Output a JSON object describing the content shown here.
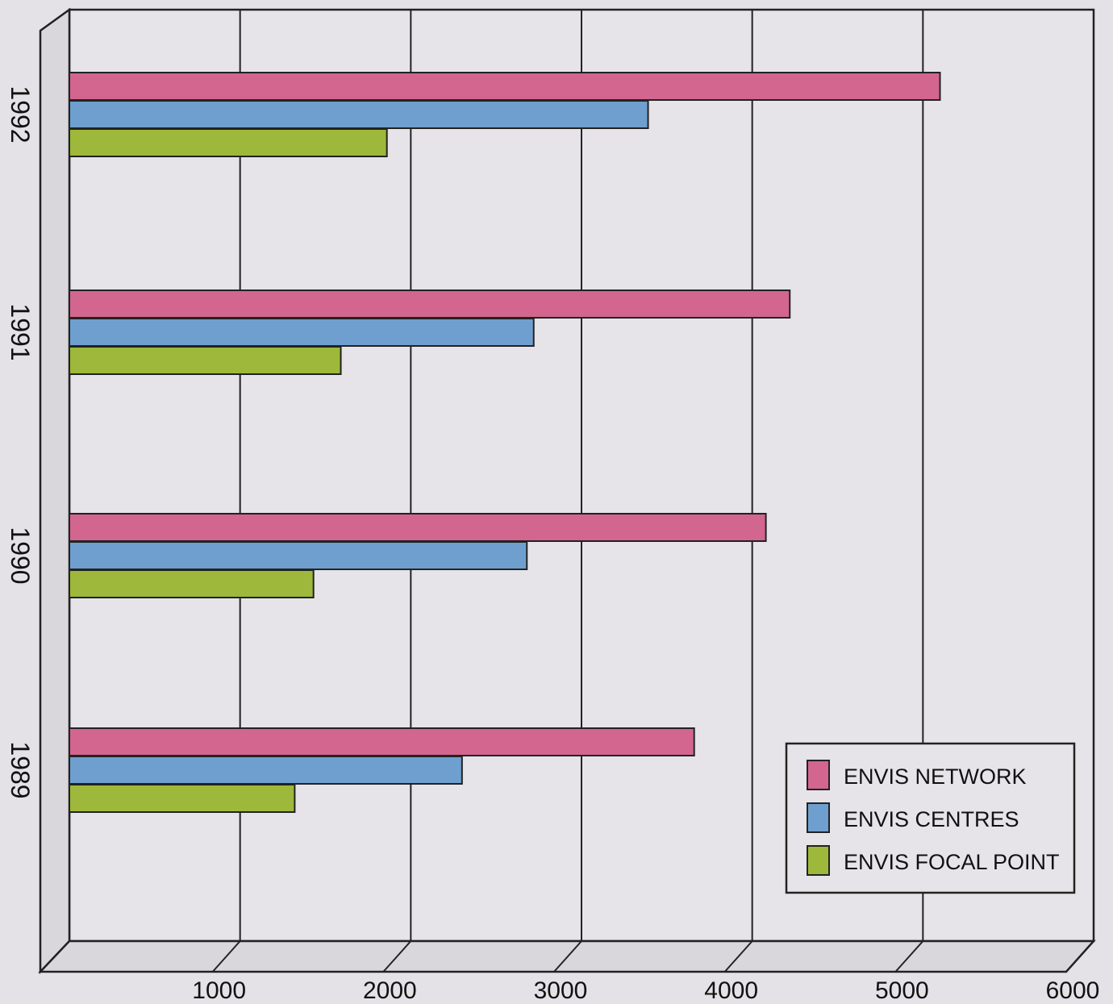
{
  "chart_data": {
    "type": "bar",
    "orientation": "horizontal",
    "categories": [
      "1992",
      "1991",
      "1990",
      "1989"
    ],
    "series": [
      {
        "name": "ENVIS NETWORK",
        "color": "#d2668e",
        "values": [
          5100,
          4220,
          4080,
          3660
        ]
      },
      {
        "name": "ENVIS CENTRES",
        "color": "#6e9fcf",
        "values": [
          3390,
          2720,
          2680,
          2300
        ]
      },
      {
        "name": "ENVIS FOCAL POINT",
        "color": "#9db83a",
        "values": [
          1860,
          1590,
          1430,
          1320
        ]
      }
    ],
    "x_ticks": [
      1000,
      2000,
      3000,
      4000,
      5000,
      6000
    ],
    "xlim": [
      0,
      6000
    ],
    "grid": true,
    "legend_position": "bottom-right",
    "title": "",
    "xlabel": "",
    "ylabel": ""
  }
}
